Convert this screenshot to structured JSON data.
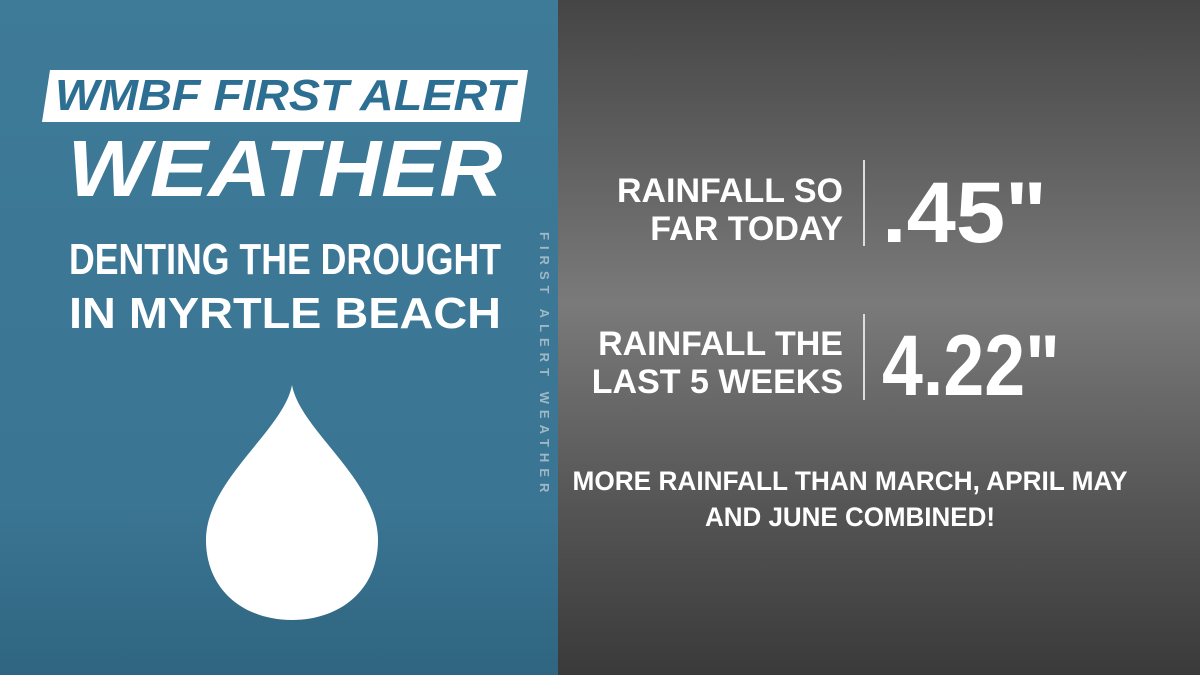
{
  "logo": {
    "line1": "WMBF FIRST ALERT",
    "line2": "WEATHER"
  },
  "headline": {
    "lines": [
      "DENTING THE DROUGHT",
      "IN MYRTLE BEACH"
    ]
  },
  "side_text": "FIRST ALERT WEATHER",
  "stats": [
    {
      "label_lines": [
        "RAINFALL SO",
        "FAR TODAY"
      ],
      "value": ".45\""
    },
    {
      "label_lines": [
        "RAINFALL THE",
        "LAST 5 WEEKS"
      ],
      "value": "4.22\""
    }
  ],
  "note": {
    "lines": [
      "MORE RAINFALL THAN MARCH, APRIL MAY",
      "AND JUNE COMBINED!"
    ]
  }
}
